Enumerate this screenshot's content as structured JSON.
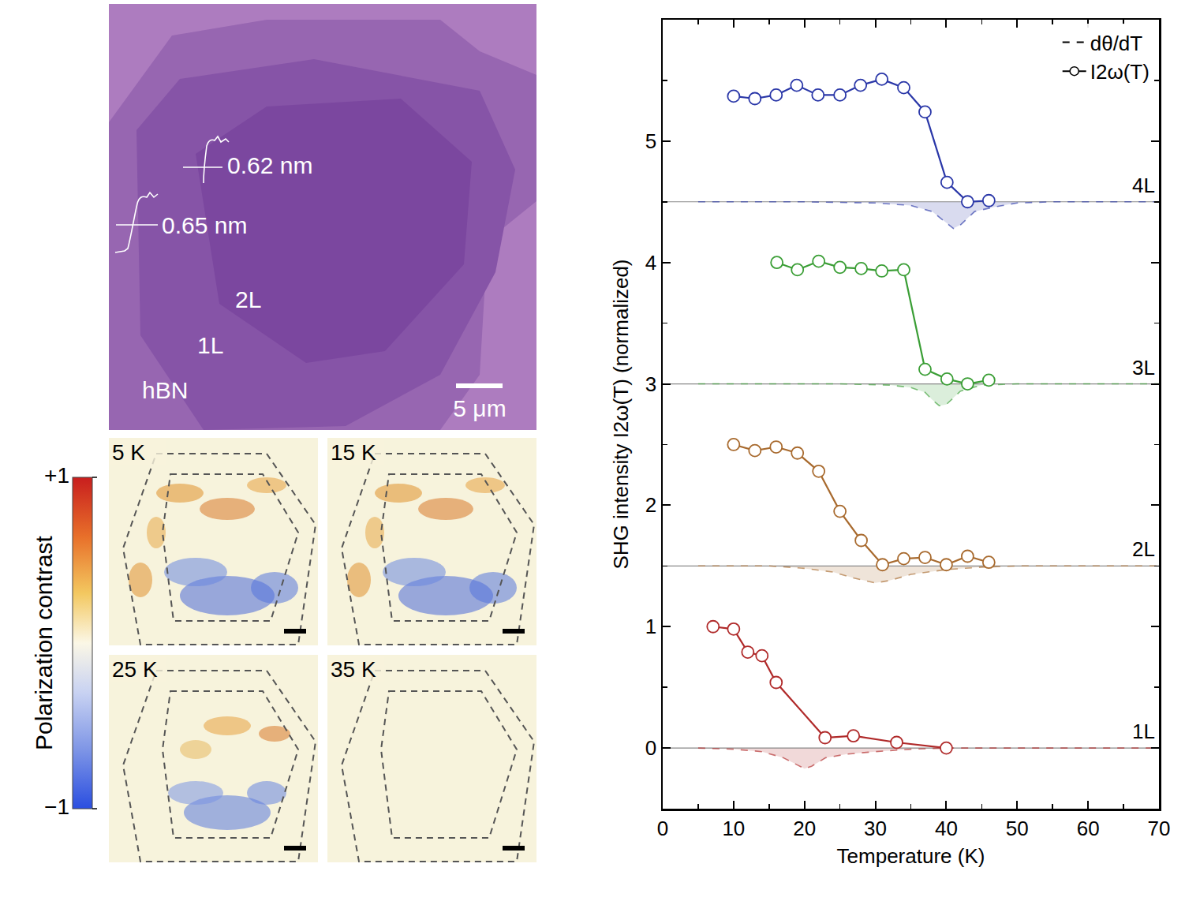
{
  "chart_data": {
    "type": "line",
    "y_label": "SHG intensity I2ω(T) (normalized)",
    "x_label": "Temperature (K)",
    "xlim": [
      0,
      70
    ],
    "xticks": [
      0,
      10,
      20,
      30,
      40,
      50,
      60,
      70
    ],
    "ylim": [
      -0.5,
      6
    ],
    "yticks": [
      0,
      1,
      2,
      3,
      4,
      5
    ],
    "grid": false,
    "legend": "upper right",
    "legend_entries": [
      "I2ω(T)",
      "dθ/dT"
    ],
    "marker": "circle",
    "series": [
      {
        "name": "4L",
        "color": "#2a37a8",
        "baseline": 4.5,
        "x": [
          10,
          13,
          16,
          18.9,
          21.9,
          25,
          27.9,
          30.9,
          34,
          37,
          40.1,
          43,
          46
        ],
        "values": [
          5.37,
          5.35,
          5.38,
          5.46,
          5.38,
          5.38,
          5.46,
          5.51,
          5.44,
          5.24,
          4.66,
          4.5,
          4.51
        ],
        "derivative": {
          "line_style": "dashed",
          "x": [
            5,
            20,
            30,
            35,
            38,
            40,
            41,
            42,
            44,
            47,
            50,
            55,
            70
          ],
          "values": [
            4.5,
            4.5,
            4.49,
            4.47,
            4.42,
            4.33,
            4.28,
            4.31,
            4.42,
            4.46,
            4.49,
            4.5,
            4.5
          ]
        }
      },
      {
        "name": "3L",
        "color": "#3a9e35",
        "baseline": 3,
        "x": [
          16.1,
          19,
          22,
          25,
          28,
          30.9,
          34,
          37,
          40.1,
          43,
          46
        ],
        "values": [
          4.0,
          3.94,
          4.01,
          3.96,
          3.95,
          3.93,
          3.94,
          3.12,
          3.04,
          3.0,
          3.03
        ],
        "derivative": {
          "line_style": "dashed",
          "x": [
            5,
            25,
            32,
            35,
            37,
            38,
            39,
            40,
            42,
            45,
            50,
            70
          ],
          "values": [
            3.0,
            3.0,
            2.99,
            2.97,
            2.93,
            2.87,
            2.82,
            2.83,
            2.94,
            2.99,
            3.0,
            3.0
          ]
        }
      },
      {
        "name": "2L",
        "color": "#a86a2e",
        "baseline": 1.5,
        "x": [
          10,
          13,
          16,
          19,
          22,
          25,
          28,
          31,
          34,
          37,
          40,
          43,
          46
        ],
        "values": [
          2.5,
          2.45,
          2.48,
          2.43,
          2.28,
          1.95,
          1.71,
          1.51,
          1.56,
          1.57,
          1.51,
          1.58,
          1.53
        ],
        "derivative": {
          "line_style": "dashed",
          "x": [
            5,
            15,
            20,
            24,
            27,
            30,
            32,
            35,
            40,
            45,
            50,
            70
          ],
          "values": [
            1.5,
            1.5,
            1.48,
            1.45,
            1.4,
            1.36,
            1.38,
            1.43,
            1.47,
            1.49,
            1.5,
            1.5
          ]
        }
      },
      {
        "name": "1L",
        "color": "#b02a2a",
        "baseline": 0,
        "x": [
          7.1,
          10,
          12,
          14,
          16,
          22.9,
          26.9,
          33,
          40
        ],
        "values": [
          1.0,
          0.98,
          0.79,
          0.76,
          0.54,
          0.085,
          0.1,
          0.046,
          0.0
        ],
        "derivative": {
          "line_style": "dashed",
          "x": [
            5,
            10,
            14,
            17,
            19,
            20,
            21,
            23,
            26,
            30,
            35,
            40,
            70
          ],
          "values": [
            0,
            -0.01,
            -0.03,
            -0.08,
            -0.14,
            -0.17,
            -0.15,
            -0.08,
            -0.05,
            -0.03,
            -0.01,
            0,
            0
          ]
        }
      }
    ]
  },
  "optical_image": {
    "step_heights": [
      "0.62 nm",
      "0.65 nm"
    ],
    "labels": [
      "2L",
      "1L",
      "hBN"
    ],
    "scale_bar": "5 μm"
  },
  "polarization_maps": {
    "temperatures": [
      "5 K",
      "15 K",
      "25 K",
      "35 K"
    ],
    "colorbar": {
      "title": "Polarization contrast",
      "range": [
        -1,
        1
      ],
      "ticks": [
        {
          "value": 1,
          "label": "+1"
        },
        {
          "value": -1,
          "label": "−1"
        }
      ]
    }
  }
}
